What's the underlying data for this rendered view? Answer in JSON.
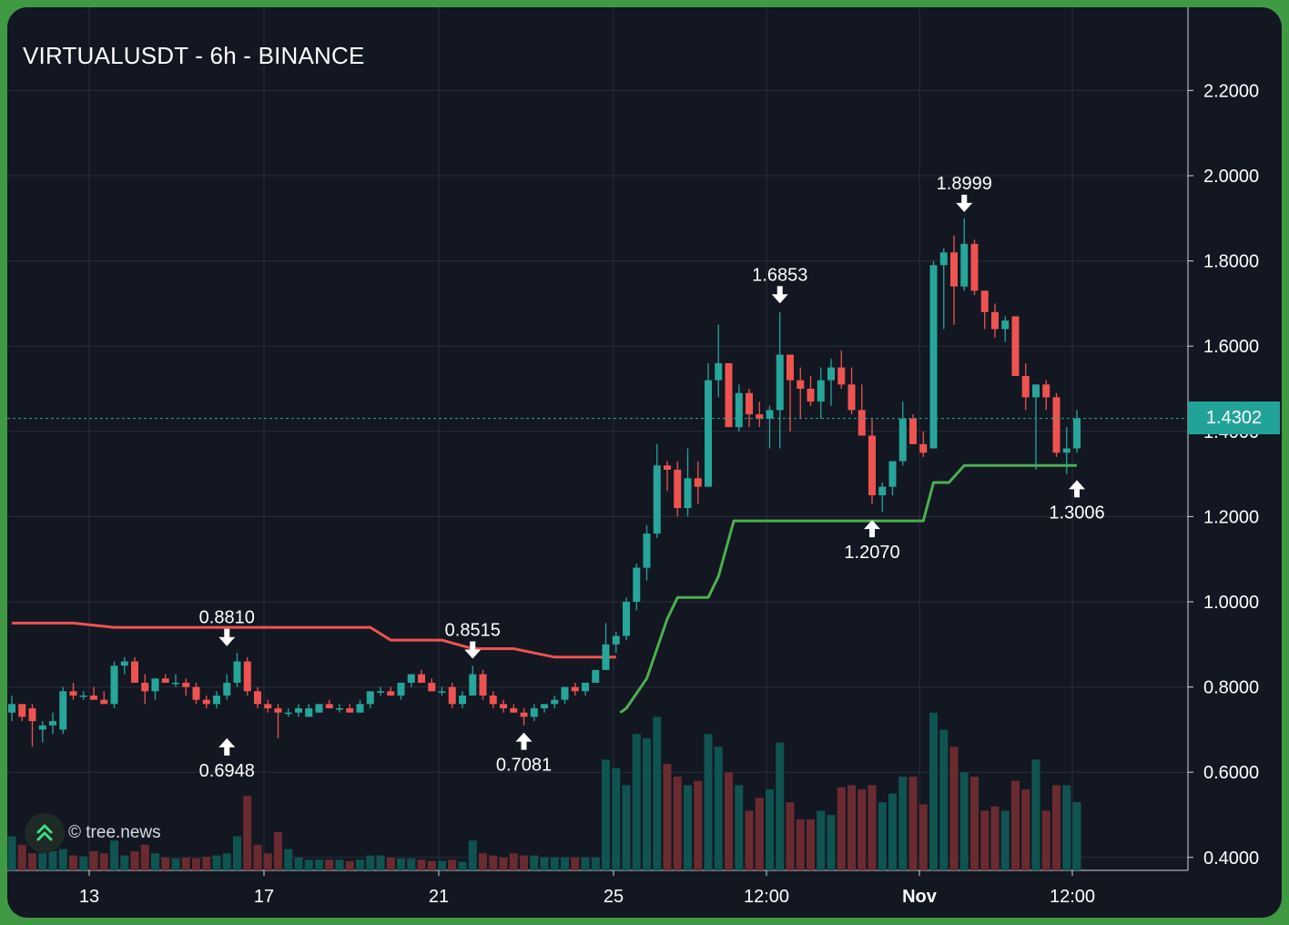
{
  "title": "VIRTUALUSDT - 6h - BINANCE",
  "watermark": "© tree.news",
  "current_price_label": "1.4302",
  "colors": {
    "background": "#131722",
    "frame": "#3f9a43",
    "up": "#26a69a",
    "down": "#ef5350",
    "trail_down": "#ef5350",
    "trail_up": "#4caf50",
    "grid": "#2a2e39",
    "text": "#ffffff"
  },
  "chart_data": {
    "type": "candlestick",
    "y_range": [
      0.38,
      2.32
    ],
    "y_ticks": [
      "0.4000",
      "0.6000",
      "0.8000",
      "1.0000",
      "1.2000",
      "1.4000",
      "1.6000",
      "1.8000",
      "2.0000",
      "2.2000"
    ],
    "x_ticks": [
      "13",
      "17",
      "21",
      "25",
      "12:00",
      "Nov",
      "12:00"
    ],
    "current_price": 1.4302,
    "candles": [
      [
        0.74,
        0.78,
        0.72,
        0.76
      ],
      [
        0.76,
        0.76,
        0.72,
        0.73
      ],
      [
        0.75,
        0.76,
        0.66,
        0.72
      ],
      [
        0.7,
        0.72,
        0.67,
        0.71
      ],
      [
        0.71,
        0.74,
        0.69,
        0.72
      ],
      [
        0.7,
        0.8,
        0.69,
        0.79
      ],
      [
        0.79,
        0.81,
        0.77,
        0.78
      ],
      [
        0.78,
        0.79,
        0.77,
        0.78
      ],
      [
        0.78,
        0.8,
        0.77,
        0.77
      ],
      [
        0.77,
        0.79,
        0.76,
        0.76
      ],
      [
        0.76,
        0.86,
        0.75,
        0.85
      ],
      [
        0.85,
        0.87,
        0.83,
        0.86
      ],
      [
        0.86,
        0.87,
        0.81,
        0.81
      ],
      [
        0.81,
        0.83,
        0.76,
        0.79
      ],
      [
        0.79,
        0.82,
        0.77,
        0.82
      ],
      [
        0.82,
        0.83,
        0.81,
        0.81
      ],
      [
        0.81,
        0.83,
        0.8,
        0.81
      ],
      [
        0.81,
        0.82,
        0.78,
        0.8
      ],
      [
        0.8,
        0.81,
        0.76,
        0.77
      ],
      [
        0.77,
        0.78,
        0.75,
        0.76
      ],
      [
        0.76,
        0.79,
        0.75,
        0.78
      ],
      [
        0.78,
        0.83,
        0.77,
        0.81
      ],
      [
        0.81,
        0.88,
        0.8,
        0.86
      ],
      [
        0.86,
        0.87,
        0.78,
        0.79
      ],
      [
        0.79,
        0.8,
        0.75,
        0.76
      ],
      [
        0.76,
        0.77,
        0.74,
        0.75
      ],
      [
        0.75,
        0.76,
        0.68,
        0.74
      ],
      [
        0.74,
        0.75,
        0.73,
        0.74
      ],
      [
        0.74,
        0.76,
        0.73,
        0.75
      ],
      [
        0.73,
        0.76,
        0.73,
        0.75
      ],
      [
        0.74,
        0.76,
        0.74,
        0.76
      ],
      [
        0.76,
        0.77,
        0.75,
        0.75
      ],
      [
        0.75,
        0.76,
        0.74,
        0.75
      ],
      [
        0.75,
        0.76,
        0.74,
        0.74
      ],
      [
        0.74,
        0.77,
        0.74,
        0.76
      ],
      [
        0.76,
        0.79,
        0.75,
        0.79
      ],
      [
        0.79,
        0.8,
        0.78,
        0.79
      ],
      [
        0.79,
        0.8,
        0.78,
        0.78
      ],
      [
        0.78,
        0.81,
        0.77,
        0.81
      ],
      [
        0.81,
        0.83,
        0.8,
        0.83
      ],
      [
        0.83,
        0.84,
        0.81,
        0.81
      ],
      [
        0.81,
        0.82,
        0.79,
        0.79
      ],
      [
        0.79,
        0.8,
        0.78,
        0.79
      ],
      [
        0.8,
        0.81,
        0.75,
        0.76
      ],
      [
        0.76,
        0.79,
        0.75,
        0.78
      ],
      [
        0.78,
        0.85,
        0.78,
        0.83
      ],
      [
        0.83,
        0.84,
        0.77,
        0.78
      ],
      [
        0.78,
        0.79,
        0.75,
        0.76
      ],
      [
        0.76,
        0.77,
        0.74,
        0.75
      ],
      [
        0.75,
        0.76,
        0.74,
        0.74
      ],
      [
        0.74,
        0.75,
        0.71,
        0.73
      ],
      [
        0.73,
        0.76,
        0.72,
        0.75
      ],
      [
        0.75,
        0.76,
        0.74,
        0.76
      ],
      [
        0.76,
        0.78,
        0.75,
        0.77
      ],
      [
        0.77,
        0.8,
        0.76,
        0.8
      ],
      [
        0.8,
        0.81,
        0.78,
        0.79
      ],
      [
        0.79,
        0.81,
        0.78,
        0.81
      ],
      [
        0.81,
        0.84,
        0.81,
        0.84
      ],
      [
        0.84,
        0.95,
        0.84,
        0.9
      ],
      [
        0.9,
        0.93,
        0.88,
        0.92
      ],
      [
        0.92,
        1.01,
        0.91,
        1.0
      ],
      [
        1.0,
        1.09,
        0.98,
        1.08
      ],
      [
        1.08,
        1.18,
        1.05,
        1.16
      ],
      [
        1.16,
        1.37,
        1.15,
        1.32
      ],
      [
        1.32,
        1.33,
        1.26,
        1.31
      ],
      [
        1.31,
        1.33,
        1.2,
        1.22
      ],
      [
        1.22,
        1.36,
        1.2,
        1.29
      ],
      [
        1.29,
        1.33,
        1.23,
        1.27
      ],
      [
        1.27,
        1.56,
        1.27,
        1.52
      ],
      [
        1.52,
        1.65,
        1.48,
        1.56
      ],
      [
        1.56,
        1.56,
        1.41,
        1.41
      ],
      [
        1.41,
        1.51,
        1.4,
        1.49
      ],
      [
        1.49,
        1.5,
        1.41,
        1.44
      ],
      [
        1.44,
        1.47,
        1.41,
        1.43
      ],
      [
        1.43,
        1.46,
        1.36,
        1.45
      ],
      [
        1.45,
        1.68,
        1.36,
        1.58
      ],
      [
        1.58,
        1.58,
        1.4,
        1.52
      ],
      [
        1.52,
        1.55,
        1.43,
        1.5
      ],
      [
        1.5,
        1.53,
        1.46,
        1.47
      ],
      [
        1.47,
        1.55,
        1.43,
        1.52
      ],
      [
        1.52,
        1.57,
        1.46,
        1.55
      ],
      [
        1.55,
        1.59,
        1.5,
        1.51
      ],
      [
        1.51,
        1.55,
        1.44,
        1.45
      ],
      [
        1.45,
        1.51,
        1.39,
        1.39
      ],
      [
        1.39,
        1.43,
        1.23,
        1.25
      ],
      [
        1.25,
        1.28,
        1.21,
        1.27
      ],
      [
        1.27,
        1.33,
        1.25,
        1.33
      ],
      [
        1.33,
        1.47,
        1.32,
        1.43
      ],
      [
        1.43,
        1.44,
        1.37,
        1.37
      ],
      [
        1.37,
        1.4,
        1.34,
        1.35
      ],
      [
        1.36,
        1.8,
        1.36,
        1.79
      ],
      [
        1.79,
        1.83,
        1.64,
        1.82
      ],
      [
        1.82,
        1.86,
        1.65,
        1.74
      ],
      [
        1.74,
        1.9,
        1.73,
        1.84
      ],
      [
        1.84,
        1.85,
        1.72,
        1.73
      ],
      [
        1.73,
        1.73,
        1.64,
        1.68
      ],
      [
        1.68,
        1.7,
        1.62,
        1.64
      ],
      [
        1.64,
        1.67,
        1.61,
        1.66
      ],
      [
        1.67,
        1.67,
        1.53,
        1.53
      ],
      [
        1.53,
        1.56,
        1.45,
        1.48
      ],
      [
        1.48,
        1.5,
        1.31,
        1.51
      ],
      [
        1.51,
        1.52,
        1.45,
        1.48
      ],
      [
        1.48,
        1.49,
        1.34,
        1.35
      ],
      [
        1.35,
        1.41,
        1.3,
        1.36
      ],
      [
        1.36,
        1.45,
        1.35,
        1.43
      ]
    ],
    "volumes": [
      0.08,
      0.06,
      0.04,
      0.04,
      0.045,
      0.05,
      0.035,
      0.033,
      0.045,
      0.04,
      0.07,
      0.035,
      0.045,
      0.06,
      0.04,
      0.03,
      0.028,
      0.03,
      0.028,
      0.032,
      0.035,
      0.04,
      0.08,
      0.175,
      0.06,
      0.04,
      0.09,
      0.05,
      0.03,
      0.025,
      0.025,
      0.025,
      0.025,
      0.022,
      0.025,
      0.035,
      0.035,
      0.03,
      0.028,
      0.028,
      0.025,
      0.022,
      0.022,
      0.025,
      0.02,
      0.07,
      0.04,
      0.035,
      0.03,
      0.04,
      0.035,
      0.035,
      0.03,
      0.03,
      0.03,
      0.03,
      0.03,
      0.03,
      0.26,
      0.24,
      0.2,
      0.32,
      0.31,
      0.36,
      0.25,
      0.22,
      0.2,
      0.21,
      0.32,
      0.29,
      0.23,
      0.2,
      0.14,
      0.17,
      0.19,
      0.3,
      0.16,
      0.12,
      0.12,
      0.14,
      0.13,
      0.195,
      0.2,
      0.19,
      0.2,
      0.16,
      0.18,
      0.22,
      0.22,
      0.155,
      0.37,
      0.33,
      0.29,
      0.23,
      0.22,
      0.14,
      0.15,
      0.14,
      0.21,
      0.19,
      0.26,
      0.14,
      0.2,
      0.2,
      0.16
    ],
    "trailing_stop_down": [
      [
        0,
        0.95
      ],
      [
        6,
        0.95
      ],
      [
        10,
        0.94
      ],
      [
        35,
        0.94
      ],
      [
        37,
        0.91
      ],
      [
        42,
        0.91
      ],
      [
        45,
        0.89
      ],
      [
        49,
        0.89
      ],
      [
        51,
        0.88
      ],
      [
        53,
        0.87
      ],
      [
        55,
        0.87
      ],
      [
        58,
        0.87
      ],
      [
        59,
        0.87
      ]
    ],
    "trailing_stop_up": [
      [
        59.4,
        0.74
      ],
      [
        60,
        0.75
      ],
      [
        62,
        0.82
      ],
      [
        64,
        0.96
      ],
      [
        65,
        1.01
      ],
      [
        68,
        1.01
      ],
      [
        69,
        1.06
      ],
      [
        70.5,
        1.19
      ],
      [
        78,
        1.19
      ],
      [
        85,
        1.19
      ],
      [
        89,
        1.19
      ],
      [
        90,
        1.28
      ],
      [
        91.5,
        1.28
      ],
      [
        93,
        1.32
      ],
      [
        104,
        1.32
      ]
    ],
    "annotations": [
      {
        "index": 21,
        "price": 0.6948,
        "label": "0.6948",
        "kind": "low"
      },
      {
        "index": 21,
        "price": 0.881,
        "label": "0.8810",
        "kind": "high"
      },
      {
        "index": 45,
        "price": 0.8515,
        "label": "0.8515",
        "kind": "high"
      },
      {
        "index": 50,
        "price": 0.7081,
        "label": "0.7081",
        "kind": "low"
      },
      {
        "index": 75,
        "price": 1.6853,
        "label": "1.6853",
        "kind": "high"
      },
      {
        "index": 84,
        "price": 1.207,
        "label": "1.2070",
        "kind": "low"
      },
      {
        "index": 93,
        "price": 1.8999,
        "label": "1.8999",
        "kind": "high"
      },
      {
        "index": 104,
        "price": 1.3006,
        "label": "1.3006",
        "kind": "low"
      }
    ]
  }
}
